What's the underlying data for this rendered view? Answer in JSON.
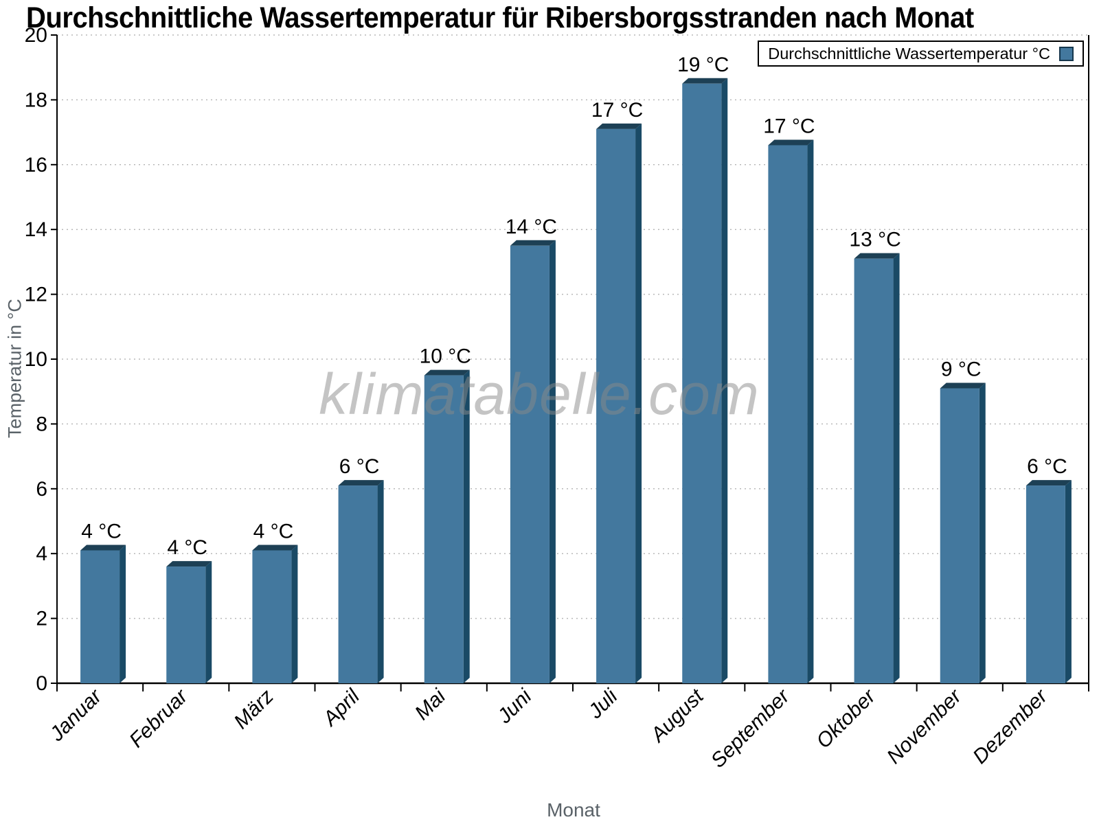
{
  "chart": {
    "watermark": "klimatabelle.com"
  },
  "chart_data": {
    "type": "bar",
    "title": "Durchschnittliche Wassertemperatur für Ribersborgsstranden nach Monat",
    "xlabel": "Monat",
    "ylabel": "Temperatur in °C",
    "categories": [
      "Januar",
      "Februar",
      "März",
      "April",
      "Mai",
      "Juni",
      "Juli",
      "August",
      "September",
      "Oktober",
      "November",
      "Dezember"
    ],
    "series": [
      {
        "name": "Durchschnittliche Wassertemperatur °C",
        "values": [
          4.1,
          3.6,
          4.1,
          6.1,
          9.5,
          13.5,
          17.1,
          18.5,
          16.6,
          13.1,
          9.1,
          6.1
        ],
        "labels": [
          "4 °C",
          "4 °C",
          "4 °C",
          "6 °C",
          "10 °C",
          "14 °C",
          "17 °C",
          "19 °C",
          "17 °C",
          "13 °C",
          "9 °C",
          "6 °C"
        ]
      }
    ],
    "ylim": [
      0,
      20
    ],
    "ytick_step": 2,
    "ytick_labels": [
      "0",
      "2",
      "4",
      "6",
      "8",
      "10",
      "12",
      "14",
      "16",
      "18",
      "20"
    ],
    "grid": "dotted horizontal gridlines every 2 units",
    "legend_position": "top-right",
    "watermark": "klimatabelle.com",
    "colors": {
      "bar_face": "#43789E",
      "bar_side": "#1A4A66",
      "bar_top": "#1D4055",
      "axis": "#000000",
      "grid": "#b8b8b8",
      "tick_label": "#000000",
      "axis_title": "#5a6268",
      "watermark": "#8a8a8a"
    }
  }
}
